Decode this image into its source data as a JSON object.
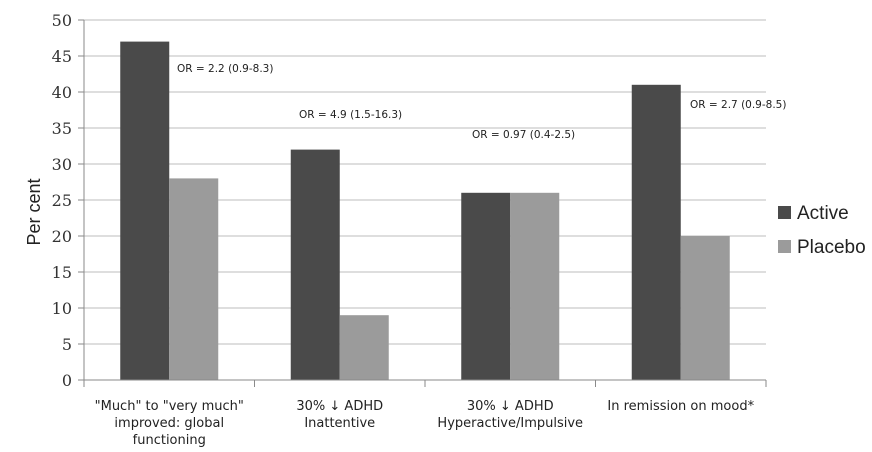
{
  "chart_data": {
    "type": "bar",
    "title": "",
    "xlabel": "",
    "ylabel": "Per cent",
    "ylim": [
      0,
      50
    ],
    "yticks": [
      0,
      5,
      10,
      15,
      20,
      25,
      30,
      35,
      40,
      45,
      50
    ],
    "grid": true,
    "legend_position": "right",
    "categories": [
      [
        "\"Much\" to \"very much\"",
        "improved: global",
        "functioning"
      ],
      [
        "30% ↓ ADHD",
        "Inattentive"
      ],
      [
        "30% ↓ ADHD",
        "Hyperactive/Impulsive"
      ],
      [
        "In remission on mood*"
      ]
    ],
    "series": [
      {
        "name": "Active",
        "color": "#4a4a4a",
        "values": [
          47,
          32,
          26,
          41
        ]
      },
      {
        "name": "Placebo",
        "color": "#9b9b9b",
        "values": [
          28,
          9,
          26,
          20
        ]
      }
    ],
    "annotations": [
      "OR = 2.2 (0.9-8.3)",
      "OR = 4.9 (1.5-16.3)",
      "OR = 0.97 (0.4-2.5)",
      "OR = 2.7 (0.9-8.5)"
    ]
  }
}
